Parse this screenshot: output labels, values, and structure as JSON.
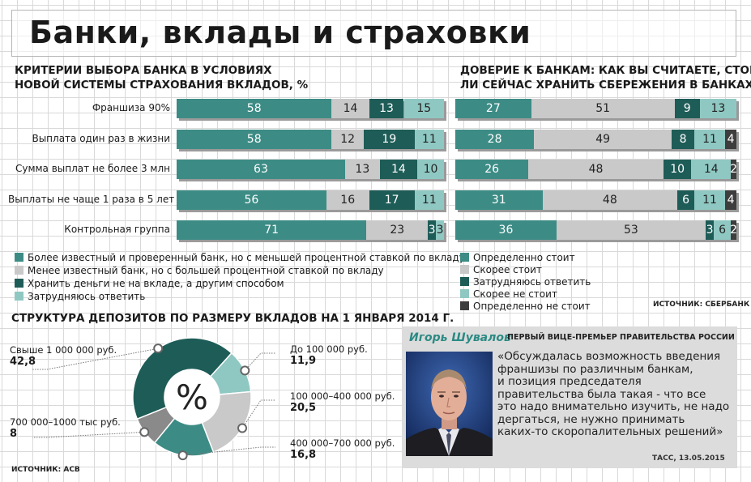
{
  "title": "Банки, вклады и страховки",
  "colors": {
    "teal_dark": "#1e5c57",
    "teal": "#3c8c85",
    "teal_light": "#8fc8c2",
    "gray_light": "#c9c9c9",
    "charcoal": "#3d3d3d",
    "grid": "#d9d9d9",
    "quote_bg": "#dcdcdc",
    "accent_name": "#2b8a84"
  },
  "chart_data": [
    {
      "type": "bar",
      "stacked": true,
      "orientation": "horizontal",
      "title": "КРИТЕРИИ ВЫБОРА БАНКА В УСЛОВИЯХ НОВОЙ СИСТЕМЫ СТРАХОВАНИЯ ВКЛАДОВ, %",
      "title_lines": [
        "КРИТЕРИИ ВЫБОРА БАНКА В УСЛОВИЯХ",
        "НОВОЙ СИСТЕМЫ СТРАХОВАНИЯ ВКЛАДОВ, %"
      ],
      "categories": [
        "Франшиза 90%",
        "Выплата один раз в жизни",
        "Сумма выплат не более 3 млн",
        "Выплаты не чаще 1 раза в 5 лет",
        "Контрольная группа"
      ],
      "series": [
        {
          "name": "Более известный и проверенный банк, но с меньшей процентной ставкой по вкладу",
          "color": "#3c8c85",
          "values": [
            58,
            58,
            63,
            56,
            71
          ]
        },
        {
          "name": "Менее известный банк, но с большей процентной ставкой по вкладу",
          "color": "#c9c9c9",
          "values": [
            14,
            12,
            13,
            16,
            23
          ]
        },
        {
          "name": "Хранить деньги не на вкладе, а другим способом",
          "color": "#1e5c57",
          "values": [
            13,
            19,
            14,
            17,
            3
          ]
        },
        {
          "name": "Затрудняюсь ответить",
          "color": "#8fc8c2",
          "values": [
            15,
            11,
            10,
            11,
            3
          ]
        }
      ],
      "xlim": [
        0,
        100
      ]
    },
    {
      "type": "bar",
      "stacked": true,
      "orientation": "horizontal",
      "title": "ДОВЕРИЕ К БАНКАМ: КАК ВЫ СЧИТАЕТЕ, СТОИТ ЛИ СЕЙЧАС ХРАНИТЬ СБЕРЕЖЕНИЯ В БАНКАХ?",
      "title_lines": [
        "ДОВЕРИЕ К БАНКАМ: КАК ВЫ СЧИТАЕТЕ, СТОИТ",
        "ЛИ СЕЙЧАС ХРАНИТЬ СБЕРЕЖЕНИЯ В БАНКАХ?"
      ],
      "series": [
        {
          "name": "Определенно стоит",
          "color": "#3c8c85",
          "values": [
            27,
            28,
            26,
            31,
            36
          ]
        },
        {
          "name": "Скорее стоит",
          "color": "#c9c9c9",
          "values": [
            51,
            49,
            48,
            48,
            53
          ]
        },
        {
          "name": "Затрудняюсь ответить",
          "color": "#1e5c57",
          "values": [
            9,
            8,
            10,
            6,
            3
          ]
        },
        {
          "name": "Скорее не стоит",
          "color": "#8fc8c2",
          "values": [
            13,
            11,
            14,
            11,
            6
          ]
        },
        {
          "name": "Определенно не стоит",
          "color": "#3d3d3d",
          "values": [
            0,
            4,
            2,
            4,
            2
          ]
        }
      ],
      "xlim": [
        0,
        100
      ],
      "source": "ИСТОЧНИК: СБЕРБАНК"
    },
    {
      "type": "pie",
      "donut": true,
      "title": "СТРУКТУРА ДЕПОЗИТОВ ПО РАЗМЕРУ ВКЛАДОВ НА 1 ЯНВАРЯ 2014 Г.",
      "center_label": "%",
      "slices": [
        {
          "label": "Свыше 1 000 000 руб.",
          "value": 42.8,
          "display": "42,8",
          "color": "#1e5c57"
        },
        {
          "label": "До 100 000 руб.",
          "value": 11.9,
          "display": "11,9",
          "color": "#8fc8c2"
        },
        {
          "label": "100 000–400 000 руб.",
          "value": 20.5,
          "display": "20,5",
          "color": "#c9c9c9"
        },
        {
          "label": "400 000–700 000 руб.",
          "value": 16.8,
          "display": "16,8",
          "color": "#3c8c85"
        },
        {
          "label": "700 000–1000 тыс руб.",
          "value": 8,
          "display": "8",
          "color": "#8a8a8a"
        }
      ],
      "source": "ИСТОЧНИК: АСВ"
    }
  ],
  "quote": {
    "name": "Игорь Шувалов",
    "role": "ПЕРВЫЙ ВИЦЕ-ПРЕМЬЕР ПРАВИТЕЛЬСТВА РОССИИ",
    "lines": [
      "«Обсуждалась возможность введения",
      "франшизы по различным банкам,",
      "и позиция председателя",
      "правительства была такая - что все",
      "это надо внимательно изучить, не надо",
      "дергаться, не нужно принимать",
      "каких-то скоропалительных решений»"
    ],
    "source": "ТАСС, 13.05.2015"
  }
}
